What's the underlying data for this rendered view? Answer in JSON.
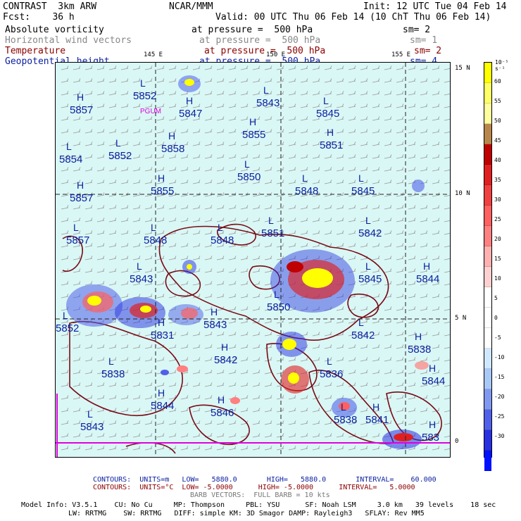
{
  "header": {
    "line1_left": "CONTRAST  3km ARW",
    "line1_center": "NCAR/MMM",
    "line1_right": "Init: 12 UTC Tue 04 Feb 14",
    "line2_left": "Fcst:    36 h",
    "line2_right": "Valid: 00 UTC Thu 06 Feb 14 (10 ChT Thu 06 Feb 14)",
    "fields": [
      {
        "name": "Absolute vorticity",
        "level": "at pressure =  500 hPa",
        "smooth": "sm= 2",
        "color": "#000000"
      },
      {
        "name": "Horizontal wind vectors",
        "level": "at pressure =  500 hPa",
        "smooth": "sm= 1",
        "color": "#888888"
      },
      {
        "name": "Temperature",
        "level": "at pressure =  500 hPa",
        "smooth": "sm= 2",
        "color": "#8b0000"
      },
      {
        "name": "Geopotential height",
        "level": "at pressure =  500 hPa",
        "smooth": "sm= 4",
        "color": "#0a1ea0"
      }
    ]
  },
  "map": {
    "lon_labels": [
      "145 E",
      "150 E",
      "155 E"
    ],
    "lat_labels": [
      "15 N",
      "10 N",
      "5 N",
      "0"
    ],
    "point_label": "PGUM",
    "highs_lows": [
      {
        "t": "H",
        "v": "5857"
      },
      {
        "t": "L",
        "v": "5852"
      },
      {
        "t": "H",
        "v": "5847"
      },
      {
        "t": "L",
        "v": "5843"
      },
      {
        "t": "L",
        "v": "5845"
      },
      {
        "t": "H",
        "v": "5855"
      },
      {
        "t": "L",
        "v": "5854"
      },
      {
        "t": "L",
        "v": "5852"
      },
      {
        "t": "H",
        "v": "5858"
      },
      {
        "t": "H",
        "v": "5851"
      },
      {
        "t": "L",
        "v": "5850"
      },
      {
        "t": "H",
        "v": "5857"
      },
      {
        "t": "H",
        "v": "5855"
      },
      {
        "t": "L",
        "v": "5848"
      },
      {
        "t": "L",
        "v": "5845"
      },
      {
        "t": "L",
        "v": "5857"
      },
      {
        "t": "L",
        "v": "5848"
      },
      {
        "t": "L",
        "v": "5848"
      },
      {
        "t": "L",
        "v": "5851"
      },
      {
        "t": "L",
        "v": "5842"
      },
      {
        "t": "L",
        "v": "5843"
      },
      {
        "t": "L",
        "v": "5845"
      },
      {
        "t": "H",
        "v": "5844"
      },
      {
        "t": "H",
        "v": "5831"
      },
      {
        "t": "H",
        "v": "5843"
      },
      {
        "t": "L",
        "v": "5850"
      },
      {
        "t": "L",
        "v": "5842"
      },
      {
        "t": "H",
        "v": "5838"
      },
      {
        "t": "H",
        "v": "5842"
      },
      {
        "t": "L",
        "v": "5838"
      },
      {
        "t": "L",
        "v": "5836"
      },
      {
        "t": "H",
        "v": "5844"
      },
      {
        "t": "H",
        "v": "5844"
      },
      {
        "t": "H",
        "v": "5846"
      },
      {
        "t": "L",
        "v": "5843"
      },
      {
        "t": "H",
        "v": "5841"
      },
      {
        "t": "H",
        "v": "583"
      },
      {
        "t": "L",
        "v": "5852"
      },
      {
        "t": "L",
        "v": "5838"
      }
    ]
  },
  "colorbar": {
    "unit": "10⁻⁵ s⁻¹",
    "ticks": [
      "60",
      "55",
      "50",
      "45",
      "40",
      "35",
      "30",
      "25",
      "20",
      "15",
      "10",
      "5",
      "0",
      "-5",
      "-10",
      "-15",
      "-20",
      "-25",
      "-30"
    ],
    "colors": [
      "#ffff00",
      "#ffff66",
      "#ffffa0",
      "#b8864b",
      "#c00000",
      "#e02020",
      "#f04040",
      "#ff6060",
      "#ff8080",
      "#ffb0b0",
      "#ffd0d0",
      "#ffffff",
      "#ffffff",
      "#ffffff",
      "#d0e8ff",
      "#a8c8f8",
      "#8098f0",
      "#5060e8",
      "#2830e0",
      "#0010ff"
    ]
  },
  "footer": {
    "contours1": "CONTOURS:  UNITS=m   LOW=   5880.0       HIGH=   5880.0       INTERVAL=    60.000",
    "contours2": "CONTOURS:  UNITS=°C  LOW= -5.0000      HIGH= -5.0000      INTERVAL=   5.0000",
    "barb": "BARB VECTORS:  FULL BARB = 10 kts",
    "model1": "Model Info: V3.5.1    CU: No Cu     MP: Thompson     PBL: YSU      SF: Noah LSM     3.0 km   39 levels    18 sec",
    "model2": "LW: RRTMG    SW: RRTMG   DIFF: simple KM: 3D Smagor DAMP: Rayleigh3   SFLAY: Rev MM5"
  }
}
